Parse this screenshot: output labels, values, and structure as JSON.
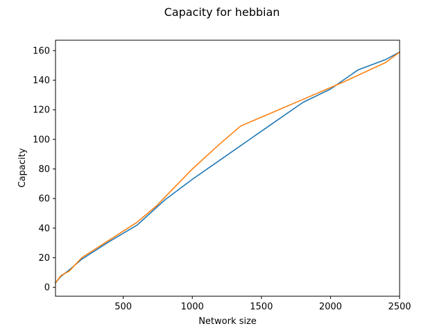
{
  "chart_data": {
    "type": "line",
    "title": "Capacity for hebbian",
    "xlabel": "Network size",
    "ylabel": "Capacity",
    "xlim": [
      10,
      2500
    ],
    "ylim": [
      -6,
      167
    ],
    "xticks": [
      500,
      1000,
      1500,
      2000,
      2500
    ],
    "yticks": [
      0,
      20,
      40,
      60,
      80,
      100,
      120,
      140,
      160
    ],
    "grid": false,
    "legend": "none",
    "series": [
      {
        "color": "#1f77b4",
        "x": [
          10,
          50,
          100,
          200,
          400,
          600,
          800,
          1000,
          1200,
          1400,
          1600,
          1800,
          2000,
          2200,
          2400,
          2500
        ],
        "y": [
          3,
          7.5,
          11,
          19,
          31,
          42,
          59,
          73,
          86,
          99,
          112,
          125,
          134,
          147,
          154,
          159
        ]
      },
      {
        "color": "#ff7f0e",
        "x": [
          10,
          50,
          80,
          110,
          200,
          400,
          600,
          740,
          1000,
          1200,
          1350,
          1500,
          1800,
          2100,
          2400,
          2500
        ],
        "y": [
          3,
          8,
          9.5,
          11,
          20,
          32,
          44,
          55,
          80,
          97,
          109,
          115,
          127,
          139,
          152,
          159
        ]
      }
    ]
  }
}
